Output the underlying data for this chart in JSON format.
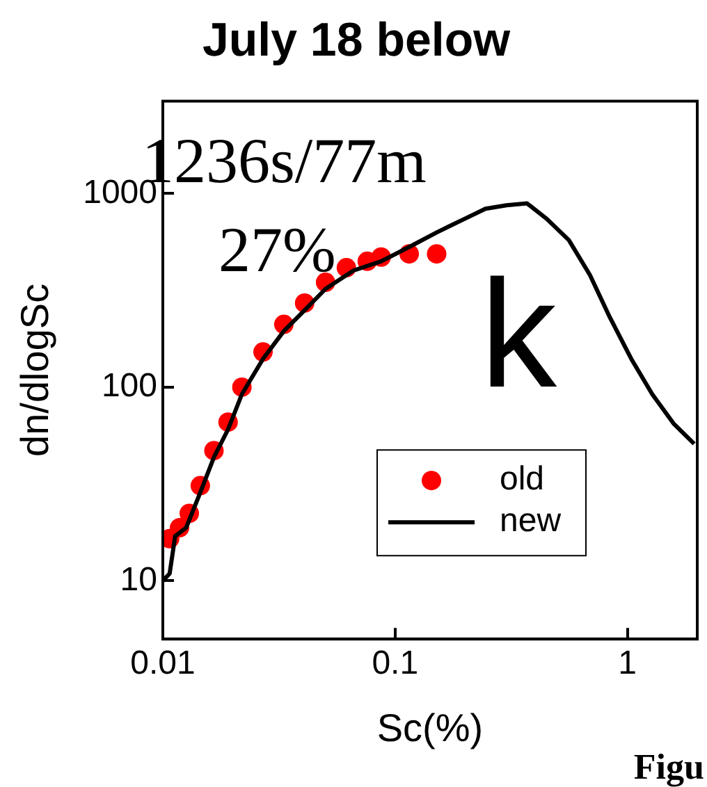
{
  "chart_data": {
    "type": "line",
    "title": "July 18 below",
    "xlabel": "Sc(%)",
    "ylabel": "dn/dlogSc",
    "log": "xy",
    "xlim": [
      0.01,
      2
    ],
    "ylim": [
      5,
      3000
    ],
    "xticks": [
      0.01,
      0.1,
      1
    ],
    "yticks": [
      10,
      100,
      1000
    ],
    "grid": false,
    "legend": "bottom right",
    "annotations": [
      "1236s/77m",
      "27%",
      "k",
      "Figu"
    ],
    "series": [
      {
        "name": "old",
        "type": "scatter",
        "color": "#ff0000",
        "marker": "circle",
        "x": [
          0.0107,
          0.0118,
          0.013,
          0.0145,
          0.0166,
          0.0191,
          0.0219,
          0.027,
          0.0332,
          0.0408,
          0.0502,
          0.0617,
          0.0759,
          0.0871,
          0.115,
          0.151
        ],
        "values": [
          16.5,
          18.8,
          22.3,
          31,
          47,
          66,
          100,
          152,
          211,
          272,
          348,
          414,
          447,
          470,
          488,
          488
        ]
      },
      {
        "name": "new",
        "type": "line",
        "color": "#000000",
        "marker": "none",
        "line_style": "solid",
        "x": [
          0.01,
          0.0107,
          0.0113,
          0.0126,
          0.0145,
          0.0166,
          0.0191,
          0.0219,
          0.027,
          0.0332,
          0.0408,
          0.0502,
          0.0661,
          0.0871,
          0.115,
          0.151,
          0.174,
          0.199,
          0.245,
          0.302,
          0.37,
          0.45,
          0.56,
          0.69,
          0.84,
          1.04,
          1.28,
          1.58,
          1.94
        ],
        "values": [
          10,
          10.9,
          17,
          18.8,
          28.6,
          43.5,
          60.6,
          92,
          140,
          195,
          250,
          322,
          400,
          447,
          530,
          630,
          685,
          740,
          835,
          870,
          890,
          740,
          575,
          380,
          230,
          140,
          92,
          65,
          51
        ]
      }
    ]
  }
}
